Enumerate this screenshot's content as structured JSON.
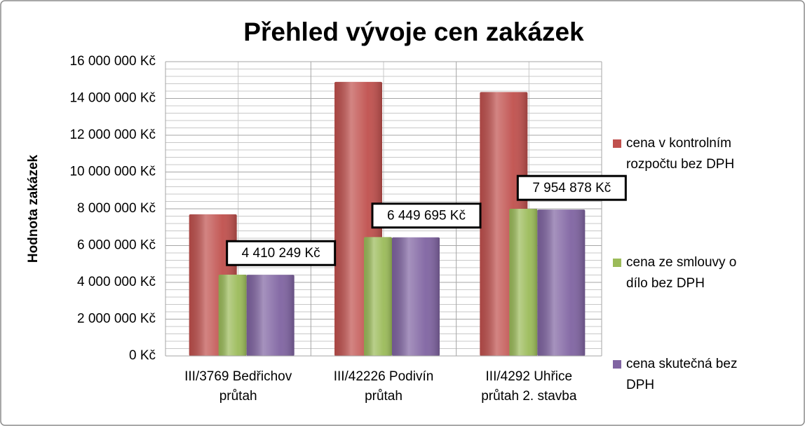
{
  "chart_data": {
    "type": "bar",
    "title": "Přehled vývoje cen zakázek",
    "y_axis_label": "Hodnota zakázek",
    "categories": [
      "III/3769 Bedřichov\nprůtah",
      "III/42226 Podivín\nprůtah",
      "III/4292 Uhřice\nprůtah 2. stavba"
    ],
    "series": [
      {
        "name": "cena v kontrolním\nrozpočtu bez DPH",
        "color": "#c0504d",
        "values": [
          7700000,
          14900000,
          14350000
        ]
      },
      {
        "name": "cena ze smlouvy o\ndílo bez DPH",
        "color": "#9bbb59",
        "values": [
          4420000,
          6460000,
          8000000
        ]
      },
      {
        "name": "cena skutečná bez\nDPH",
        "color": "#8064a2",
        "values": [
          4410249,
          6449695,
          7954878
        ],
        "value_labels": [
          "4 410 249 Kč",
          "6 449 695 Kč",
          "7 954 878 Kč"
        ]
      }
    ],
    "ylim": [
      0,
      16000000
    ],
    "yticks": [
      {
        "value": 0,
        "label": "0 Kč"
      },
      {
        "value": 2000000,
        "label": "2 000 000 Kč"
      },
      {
        "value": 4000000,
        "label": "4 000 000 Kč"
      },
      {
        "value": 6000000,
        "label": "6 000 000 Kč"
      },
      {
        "value": 8000000,
        "label": "8 000 000 Kč"
      },
      {
        "value": 10000000,
        "label": "10 000 000 Kč"
      },
      {
        "value": 12000000,
        "label": "12 000 000 Kč"
      },
      {
        "value": 14000000,
        "label": "14 000 000 Kč"
      },
      {
        "value": 16000000,
        "label": "16 000 000 Kč"
      }
    ],
    "grid": true,
    "legend": "right"
  }
}
